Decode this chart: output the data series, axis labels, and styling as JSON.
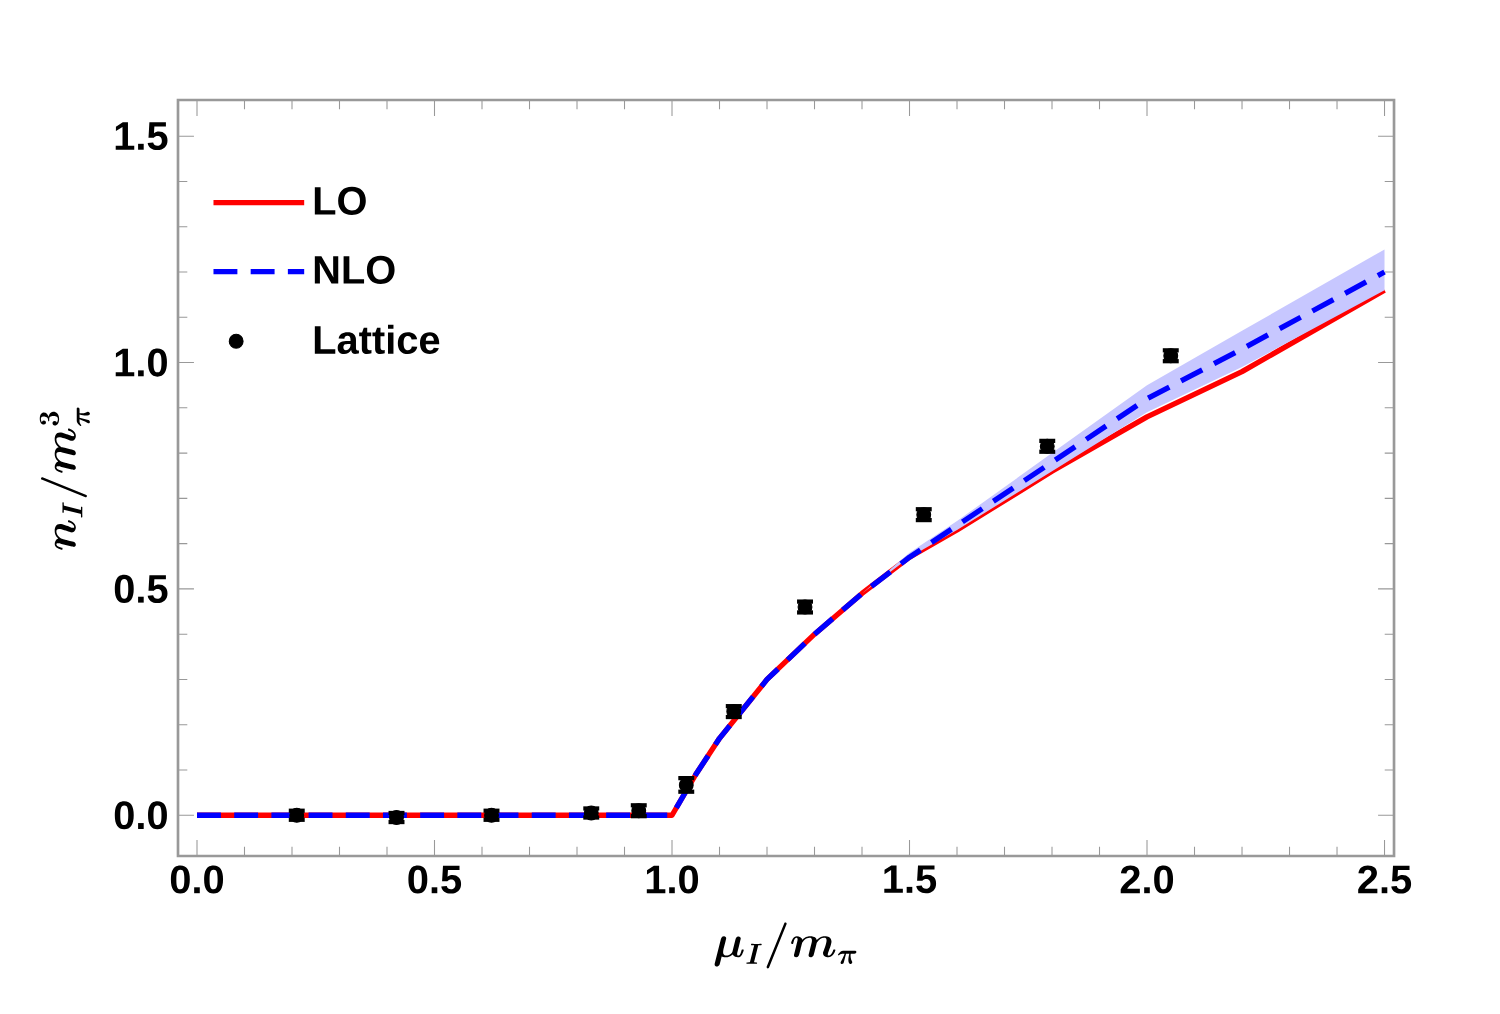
{
  "chart_data": {
    "type": "line",
    "xlabel": "\\boldsymbol{\\mu_I/m_\\pi}",
    "ylabel": "\\boldsymbol{n_I/m_\\pi^{3}}",
    "xlim": [
      -0.04,
      2.52
    ],
    "ylim": [
      -0.09,
      1.58
    ],
    "xticks": [
      {
        "value": 0,
        "label": "0.0"
      },
      0.5,
      {
        "value": 1,
        "label": "1.0"
      },
      1.5,
      {
        "value": 2,
        "label": "2.0"
      },
      2.5
    ],
    "yticks": [
      {
        "value": 0,
        "label": "0.0"
      },
      0.5,
      {
        "value": 1,
        "label": "1.0"
      },
      1.5
    ],
    "grid": false,
    "legend": "top left",
    "series": [
      {
        "name": "LO",
        "color": "#ff0000",
        "line_style": "solid",
        "marker": "none",
        "x": [
          0,
          1.0,
          1.05,
          1.1,
          1.2,
          1.3,
          1.4,
          1.5,
          1.6,
          1.8,
          2.0,
          2.2,
          2.5
        ],
        "values": [
          0,
          0,
          0.09,
          0.17,
          0.3,
          0.4,
          0.49,
          0.57,
          0.63,
          0.76,
          0.88,
          0.98,
          1.16
        ]
      },
      {
        "name": "NLO",
        "color": "#0000ff",
        "line_style": "dashed",
        "marker": "none",
        "x": [
          0,
          1.0,
          1.05,
          1.1,
          1.2,
          1.3,
          1.4,
          1.5,
          1.6,
          1.8,
          2.0,
          2.2,
          2.5
        ],
        "values": [
          0,
          0,
          0.09,
          0.17,
          0.3,
          0.4,
          0.49,
          0.57,
          0.64,
          0.78,
          0.92,
          1.03,
          1.2
        ],
        "lower": [
          0,
          0,
          0.09,
          0.17,
          0.3,
          0.4,
          0.49,
          0.57,
          0.63,
          0.76,
          0.89,
          0.99,
          1.16
        ],
        "upper": [
          0,
          0,
          0.09,
          0.17,
          0.3,
          0.4,
          0.49,
          0.58,
          0.65,
          0.8,
          0.95,
          1.07,
          1.25
        ]
      },
      {
        "name": "Lattice",
        "type": "scatter",
        "color": "#000000",
        "marker": "circle",
        "x": [
          0.21,
          0.42,
          0.62,
          0.83,
          0.93,
          1.03,
          1.13,
          1.28,
          1.53,
          1.79,
          2.05
        ],
        "values": [
          0.0,
          -0.005,
          0.0,
          0.005,
          0.01,
          0.067,
          0.229,
          0.46,
          0.664,
          0.815,
          1.015
        ],
        "errors": [
          0.01,
          0.01,
          0.01,
          0.01,
          0.012,
          0.015,
          0.012,
          0.012,
          0.012,
          0.012,
          0.012
        ]
      }
    ]
  }
}
